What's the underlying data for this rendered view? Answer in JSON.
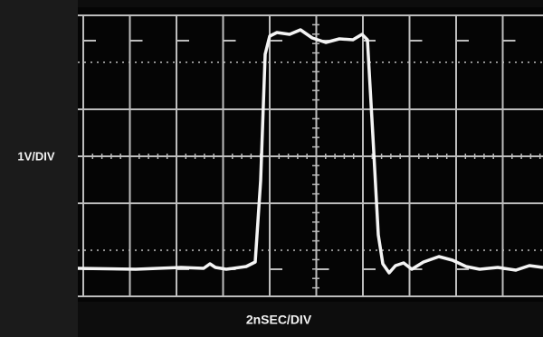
{
  "labels": {
    "vertical_scale": "1V/DIV",
    "horizontal_scale": "2nSEC/DIV"
  }
}
